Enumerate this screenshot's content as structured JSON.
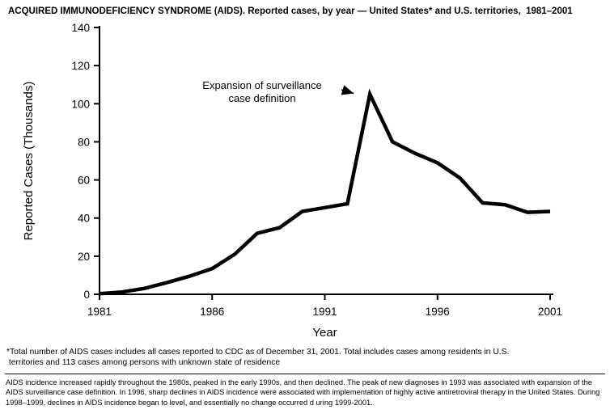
{
  "title": "ACQUIRED IMMUNODEFICIENCY SYNDROME (AIDS). Reported cases, by year — United States* and U.S. territories,  1981–2001",
  "chart_data": {
    "type": "line",
    "x": [
      1981,
      1982,
      1983,
      1984,
      1985,
      1986,
      1987,
      1988,
      1989,
      1990,
      1991,
      1992,
      1993,
      1994,
      1995,
      1996,
      1997,
      1998,
      1999,
      2000,
      2001
    ],
    "values": [
      0.3,
      1.2,
      3.1,
      6.2,
      9.5,
      13.5,
      21,
      32,
      35,
      43.5,
      45.5,
      47.5,
      105,
      80,
      74,
      69,
      61,
      48,
      47,
      43,
      43.5
    ],
    "xlabel": "Year",
    "ylabel": "Reported Cases (Thousands)",
    "xlim": [
      1981,
      2001
    ],
    "ylim": [
      0,
      140
    ],
    "yticks": [
      0,
      20,
      40,
      60,
      80,
      100,
      120,
      140
    ],
    "xticks": [
      1981,
      1986,
      1991,
      1996,
      2001
    ],
    "line_color": "#000000",
    "annotation": {
      "line1": "Expansion of surveillance",
      "line2": "case definition",
      "target_year": 1993,
      "target_value": 105
    }
  },
  "footnote": "*Total number of AIDS cases includes all cases reported to CDC as of December 31, 2001. Total includes cases among residents in U.S.\n territories and 113 cases among persons with unknown state of residence",
  "caption": "AIDS incidence increased rapidly throughout the 1980s, peaked in the early 1990s, and then declined. The peak of new diagnoses in 1993 was associated with expansion of the AIDS surveillance case definition. In 1996, sharp declines in AIDS incidence were associated with implementation of highly active antiretroviral therapy in the United States. During 1998–1999, declines in AIDS incidence began to level, and essentially no change occurred d uring 1999-2001."
}
